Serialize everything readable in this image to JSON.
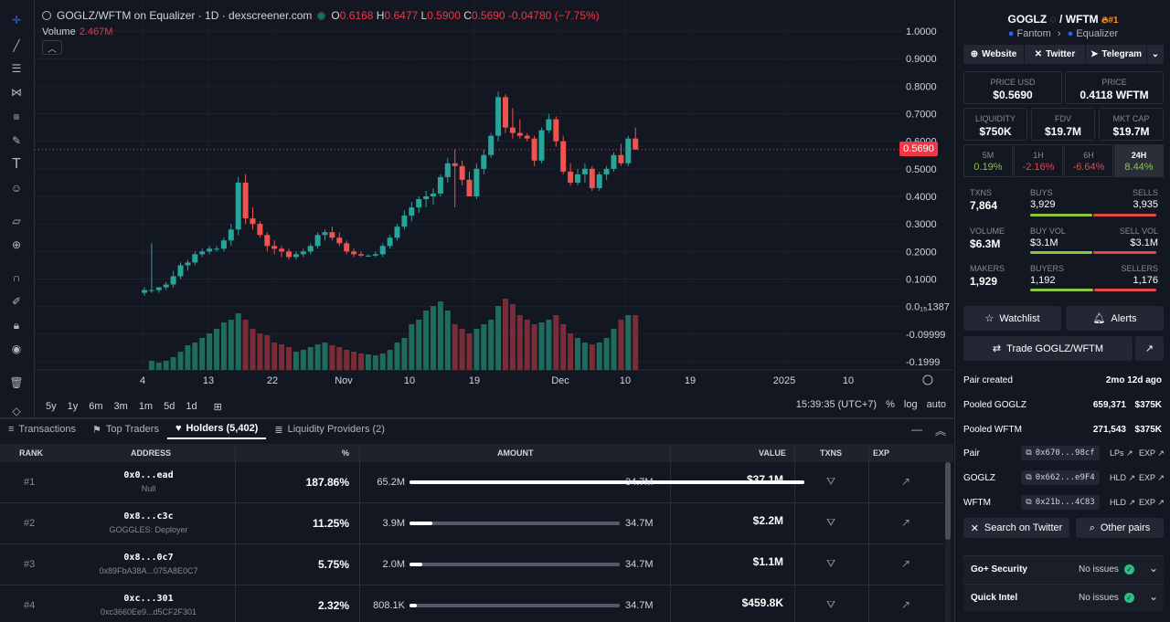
{
  "chart": {
    "title": "GOGLZ/WFTM on Equalizer · 1D · dexscreener.com",
    "ohlc": {
      "o": "0.6168",
      "h": "0.6477",
      "l": "0.5900",
      "c": "0.5690",
      "chg": "-0.04780 (−7.75%)"
    },
    "volume_label": "Volume",
    "volume_value": "2.467M",
    "price_tag": "0.5690",
    "yticks": [
      "1.0000",
      "0.9000",
      "0.8000",
      "0.7000",
      "0.6000",
      "0.5000",
      "0.4000",
      "0.3000",
      "0.2000",
      "0.1000",
      "0.0₁₅1387",
      "-0.09999",
      "-0.1999"
    ],
    "xticks": [
      "4",
      "13",
      "22",
      "Nov",
      "10",
      "19",
      "Dec",
      "10",
      "19",
      "2025",
      "10"
    ],
    "ranges": [
      "5y",
      "1y",
      "6m",
      "3m",
      "1m",
      "5d",
      "1d"
    ],
    "clock": "15:39:35 (UTC+7)",
    "opts": [
      "%",
      "log",
      "auto"
    ],
    "colors": {
      "up": "#26a69a",
      "down": "#ef5350"
    }
  },
  "chart_data": {
    "type": "candlestick",
    "candles": [
      [
        0.05,
        0.07,
        0.04,
        0.06
      ],
      [
        0.06,
        0.23,
        0.05,
        0.06
      ],
      [
        0.06,
        0.07,
        0.05,
        0.07
      ],
      [
        0.07,
        0.09,
        0.06,
        0.08
      ],
      [
        0.08,
        0.13,
        0.07,
        0.11
      ],
      [
        0.11,
        0.16,
        0.1,
        0.15
      ],
      [
        0.15,
        0.17,
        0.13,
        0.16
      ],
      [
        0.16,
        0.2,
        0.15,
        0.19
      ],
      [
        0.19,
        0.21,
        0.18,
        0.2
      ],
      [
        0.2,
        0.22,
        0.19,
        0.21
      ],
      [
        0.21,
        0.22,
        0.2,
        0.21
      ],
      [
        0.21,
        0.25,
        0.2,
        0.24
      ],
      [
        0.24,
        0.3,
        0.22,
        0.28
      ],
      [
        0.28,
        0.47,
        0.26,
        0.45
      ],
      [
        0.45,
        0.48,
        0.3,
        0.32
      ],
      [
        0.32,
        0.36,
        0.28,
        0.3
      ],
      [
        0.3,
        0.31,
        0.25,
        0.26
      ],
      [
        0.26,
        0.27,
        0.2,
        0.22
      ],
      [
        0.22,
        0.24,
        0.19,
        0.21
      ],
      [
        0.21,
        0.22,
        0.18,
        0.2
      ],
      [
        0.2,
        0.21,
        0.17,
        0.18
      ],
      [
        0.18,
        0.2,
        0.17,
        0.19
      ],
      [
        0.19,
        0.21,
        0.18,
        0.2
      ],
      [
        0.2,
        0.23,
        0.19,
        0.22
      ],
      [
        0.22,
        0.27,
        0.21,
        0.26
      ],
      [
        0.26,
        0.28,
        0.24,
        0.27
      ],
      [
        0.27,
        0.29,
        0.24,
        0.25
      ],
      [
        0.25,
        0.27,
        0.22,
        0.23
      ],
      [
        0.23,
        0.24,
        0.19,
        0.2
      ],
      [
        0.2,
        0.21,
        0.18,
        0.19
      ],
      [
        0.19,
        0.2,
        0.18,
        0.185
      ],
      [
        0.185,
        0.19,
        0.18,
        0.185
      ],
      [
        0.185,
        0.2,
        0.18,
        0.19
      ],
      [
        0.19,
        0.23,
        0.18,
        0.22
      ],
      [
        0.22,
        0.26,
        0.21,
        0.25
      ],
      [
        0.25,
        0.3,
        0.24,
        0.29
      ],
      [
        0.29,
        0.35,
        0.28,
        0.33
      ],
      [
        0.33,
        0.38,
        0.31,
        0.36
      ],
      [
        0.36,
        0.4,
        0.34,
        0.39
      ],
      [
        0.39,
        0.42,
        0.36,
        0.4
      ],
      [
        0.4,
        0.43,
        0.37,
        0.41
      ],
      [
        0.41,
        0.48,
        0.4,
        0.47
      ],
      [
        0.47,
        0.54,
        0.45,
        0.52
      ],
      [
        0.52,
        0.57,
        0.36,
        0.51
      ],
      [
        0.51,
        0.53,
        0.44,
        0.46
      ],
      [
        0.46,
        0.49,
        0.41,
        0.4
      ],
      [
        0.4,
        0.52,
        0.39,
        0.5
      ],
      [
        0.5,
        0.57,
        0.48,
        0.55
      ],
      [
        0.55,
        0.63,
        0.54,
        0.62
      ],
      [
        0.62,
        0.78,
        0.6,
        0.76
      ],
      [
        0.76,
        0.77,
        0.63,
        0.65
      ],
      [
        0.65,
        0.72,
        0.61,
        0.63
      ],
      [
        0.63,
        0.68,
        0.61,
        0.62
      ],
      [
        0.62,
        0.63,
        0.6,
        0.61
      ],
      [
        0.61,
        0.62,
        0.51,
        0.53
      ],
      [
        0.53,
        0.65,
        0.52,
        0.64
      ],
      [
        0.64,
        0.7,
        0.63,
        0.68
      ],
      [
        0.68,
        0.69,
        0.58,
        0.6
      ],
      [
        0.6,
        0.62,
        0.48,
        0.49
      ],
      [
        0.49,
        0.52,
        0.44,
        0.45
      ],
      [
        0.45,
        0.5,
        0.44,
        0.48
      ],
      [
        0.48,
        0.52,
        0.45,
        0.5
      ],
      [
        0.5,
        0.51,
        0.42,
        0.43
      ],
      [
        0.43,
        0.49,
        0.42,
        0.48
      ],
      [
        0.48,
        0.51,
        0.46,
        0.5
      ],
      [
        0.5,
        0.56,
        0.49,
        0.55
      ],
      [
        0.55,
        0.59,
        0.51,
        0.52
      ],
      [
        0.52,
        0.62,
        0.51,
        0.61
      ],
      [
        0.61,
        0.65,
        0.57,
        0.57
      ]
    ],
    "volume_heights": [
      0,
      0.1,
      0.08,
      0.1,
      0.14,
      0.2,
      0.27,
      0.3,
      0.35,
      0.4,
      0.45,
      0.52,
      0.55,
      0.62,
      0.55,
      0.45,
      0.4,
      0.38,
      0.3,
      0.28,
      0.25,
      0.2,
      0.22,
      0.25,
      0.28,
      0.3,
      0.27,
      0.25,
      0.22,
      0.2,
      0.18,
      0.17,
      0.16,
      0.18,
      0.22,
      0.3,
      0.35,
      0.5,
      0.55,
      0.65,
      0.7,
      0.75,
      0.65,
      0.5,
      0.45,
      0.4,
      0.45,
      0.5,
      0.55,
      0.7,
      0.78,
      0.72,
      0.6,
      0.55,
      0.5,
      0.52,
      0.55,
      0.6,
      0.5,
      0.4,
      0.35,
      0.3,
      0.28,
      0.3,
      0.35,
      0.45,
      0.55,
      0.6,
      0.6
    ],
    "ylim": [
      -0.2,
      1.0
    ]
  },
  "tabs": [
    {
      "icon": "≡",
      "label": "Transactions"
    },
    {
      "icon": "⚑",
      "label": "Top Traders"
    },
    {
      "icon": "♥",
      "label": "Holders (5,402)"
    },
    {
      "icon": "≣",
      "label": "Liquidity Providers (2)"
    }
  ],
  "table": {
    "headers": [
      "RANK",
      "ADDRESS",
      "%",
      "AMOUNT",
      "VALUE",
      "TXNS",
      "EXP"
    ],
    "total": "34.7M",
    "rows": [
      {
        "rank": "#1",
        "addr": "0x0...ead",
        "sub": "Null",
        "pct": "187.86%",
        "amt": "65.2M",
        "val": "$37.1M",
        "fill": 1.0
      },
      {
        "rank": "#2",
        "addr": "0x8...c3c",
        "sub": "GOGGLES: Deployer",
        "pct": "11.25%",
        "amt": "3.9M",
        "val": "$2.2M",
        "fill": 0.11
      },
      {
        "rank": "#3",
        "addr": "0x8...0c7",
        "sub": "0x89FbA38A...075A8E0C7",
        "pct": "5.75%",
        "amt": "2.0M",
        "val": "$1.1M",
        "fill": 0.06
      },
      {
        "rank": "#4",
        "addr": "0xc...301",
        "sub": "0xc3660Ee9...d5CF2F301",
        "pct": "2.32%",
        "amt": "808.1K",
        "val": "$459.8K",
        "fill": 0.025
      }
    ]
  },
  "side": {
    "pair_base": "GOGLZ",
    "pair_sep": "/",
    "pair_quote": "WFTM",
    "rank": "#1",
    "chain": "Fantom",
    "dex": "Equalizer",
    "links": [
      "Website",
      "Twitter",
      "Telegram"
    ],
    "price_usd_label": "PRICE USD",
    "price_usd": "$0.5690",
    "price_label": "PRICE",
    "price": "0.4118 WFTM",
    "liq_label": "LIQUIDITY",
    "liq": "$750K",
    "fdv_label": "FDV",
    "fdv": "$19.7M",
    "mcap_label": "MKT CAP",
    "mcap": "$19.7M",
    "changes": [
      {
        "l": "5M",
        "v": "0.19%"
      },
      {
        "l": "1H",
        "v": "-2.16%"
      },
      {
        "l": "6H",
        "v": "-6.64%"
      },
      {
        "l": "24H",
        "v": "8.44%"
      }
    ],
    "txns_label": "TXNS",
    "txns": "7,864",
    "buys_label": "BUYS",
    "buys": "3,929",
    "sells_label": "SELLS",
    "sells": "3,935",
    "vol_label": "VOLUME",
    "vol": "$6.3M",
    "buyvol_label": "BUY VOL",
    "buyvol": "$3.1M",
    "sellvol_label": "SELL VOL",
    "sellvol": "$3.1M",
    "makers_label": "MAKERS",
    "makers": "1,929",
    "buyers_label": "BUYERS",
    "buyers": "1,192",
    "sellers_label": "SELLERS",
    "sellers": "1,176",
    "watchlist": "Watchlist",
    "alerts": "Alerts",
    "trade": "Trade GOGLZ/WFTM",
    "pair_created_label": "Pair created",
    "pair_created": "2mo 12d ago",
    "pooled1_label": "Pooled GOGLZ",
    "pooled1": "659,371",
    "pooled1_usd": "$375K",
    "pooled2_label": "Pooled WFTM",
    "pooled2": "271,543",
    "pooled2_usd": "$375K",
    "addrs": [
      {
        "l": "Pair",
        "a": "0x670...98cf",
        "k1": "LPs"
      },
      {
        "l": "GOGLZ",
        "a": "0x662...e9F4",
        "k1": "HLD"
      },
      {
        "l": "WFTM",
        "a": "0x21b...4C83",
        "k1": "HLD"
      }
    ],
    "exp": "EXP",
    "search_twitter": "Search on Twitter",
    "other_pairs": "Other pairs",
    "security": [
      {
        "t": "Go+ Security",
        "s": "No issues"
      },
      {
        "t": "Quick Intel",
        "s": "No issues"
      }
    ]
  }
}
